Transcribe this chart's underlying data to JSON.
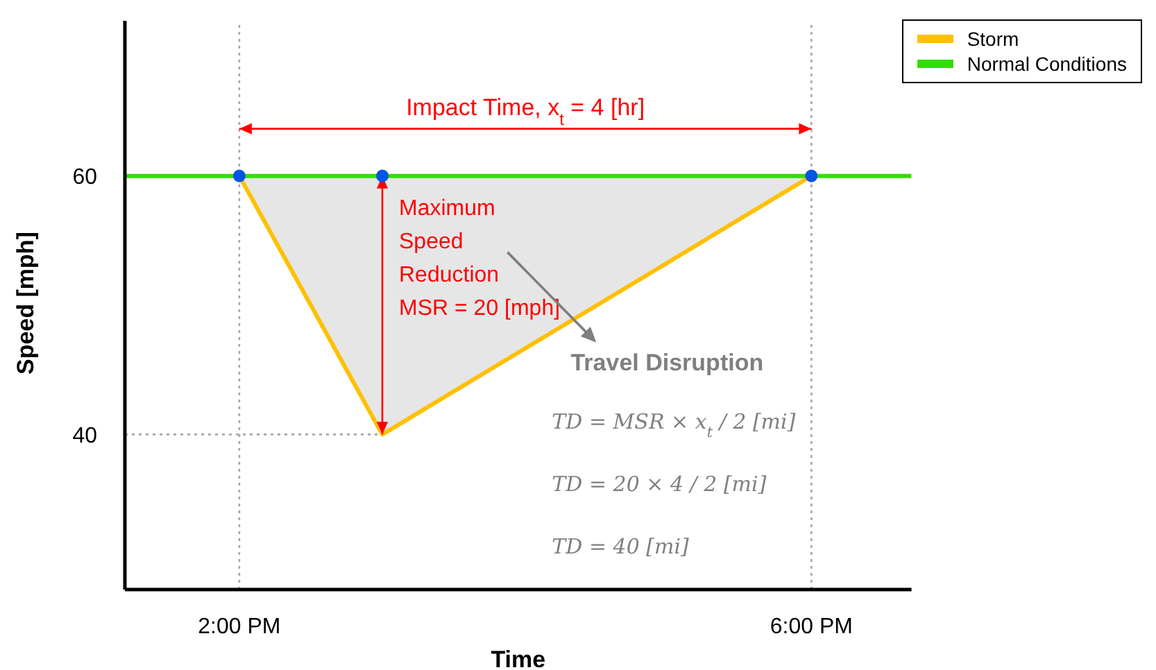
{
  "chart_data": {
    "type": "line",
    "xlabel": "Time",
    "ylabel": "Speed [mph]",
    "xlim": [
      13.2,
      18.7
    ],
    "ylim": [
      28,
      72
    ],
    "xticks": [
      {
        "value": 14,
        "label": "2:00 PM"
      },
      {
        "value": 18,
        "label": "6:00 PM"
      }
    ],
    "yticks": [
      40,
      60
    ],
    "grid": false,
    "legend": "top right",
    "line_style": "solid",
    "series": [
      {
        "name": "Normal Conditions",
        "color": "#33dd00",
        "x": [
          13.2,
          18.7
        ],
        "values": [
          60,
          60
        ]
      },
      {
        "name": "Storm",
        "color": "#ffc000",
        "x": [
          14,
          15,
          18
        ],
        "values": [
          60,
          40,
          60
        ]
      },
      {
        "type": "scatter",
        "color": "#0055e6",
        "marker": "circle",
        "x": [
          14,
          15,
          18
        ],
        "values": [
          60,
          60,
          60
        ]
      }
    ],
    "ref_lines": [
      {
        "axis": "x",
        "value": 14,
        "color": "#a6a6a6",
        "line_style": "dotted"
      },
      {
        "axis": "x",
        "value": 18,
        "color": "#a6a6a6",
        "line_style": "dotted"
      },
      {
        "axis": "y",
        "value": 40,
        "color": "#a6a6a6",
        "line_style": "dotted"
      }
    ],
    "annotations": [
      "Impact Time, x$_{t}$ = 4 [hr]",
      {
        "text": "Maximum\nSpeed\nReduction\nMSR = 20 [mph]",
        "x": 15,
        "y": 40
      },
      "Travel Disruption",
      "TD = MSR × x$_{t}$ / 2 [mi]",
      "TD = 20 × 4 / 2 [mi]",
      "TD = 40 [mi]"
    ]
  }
}
